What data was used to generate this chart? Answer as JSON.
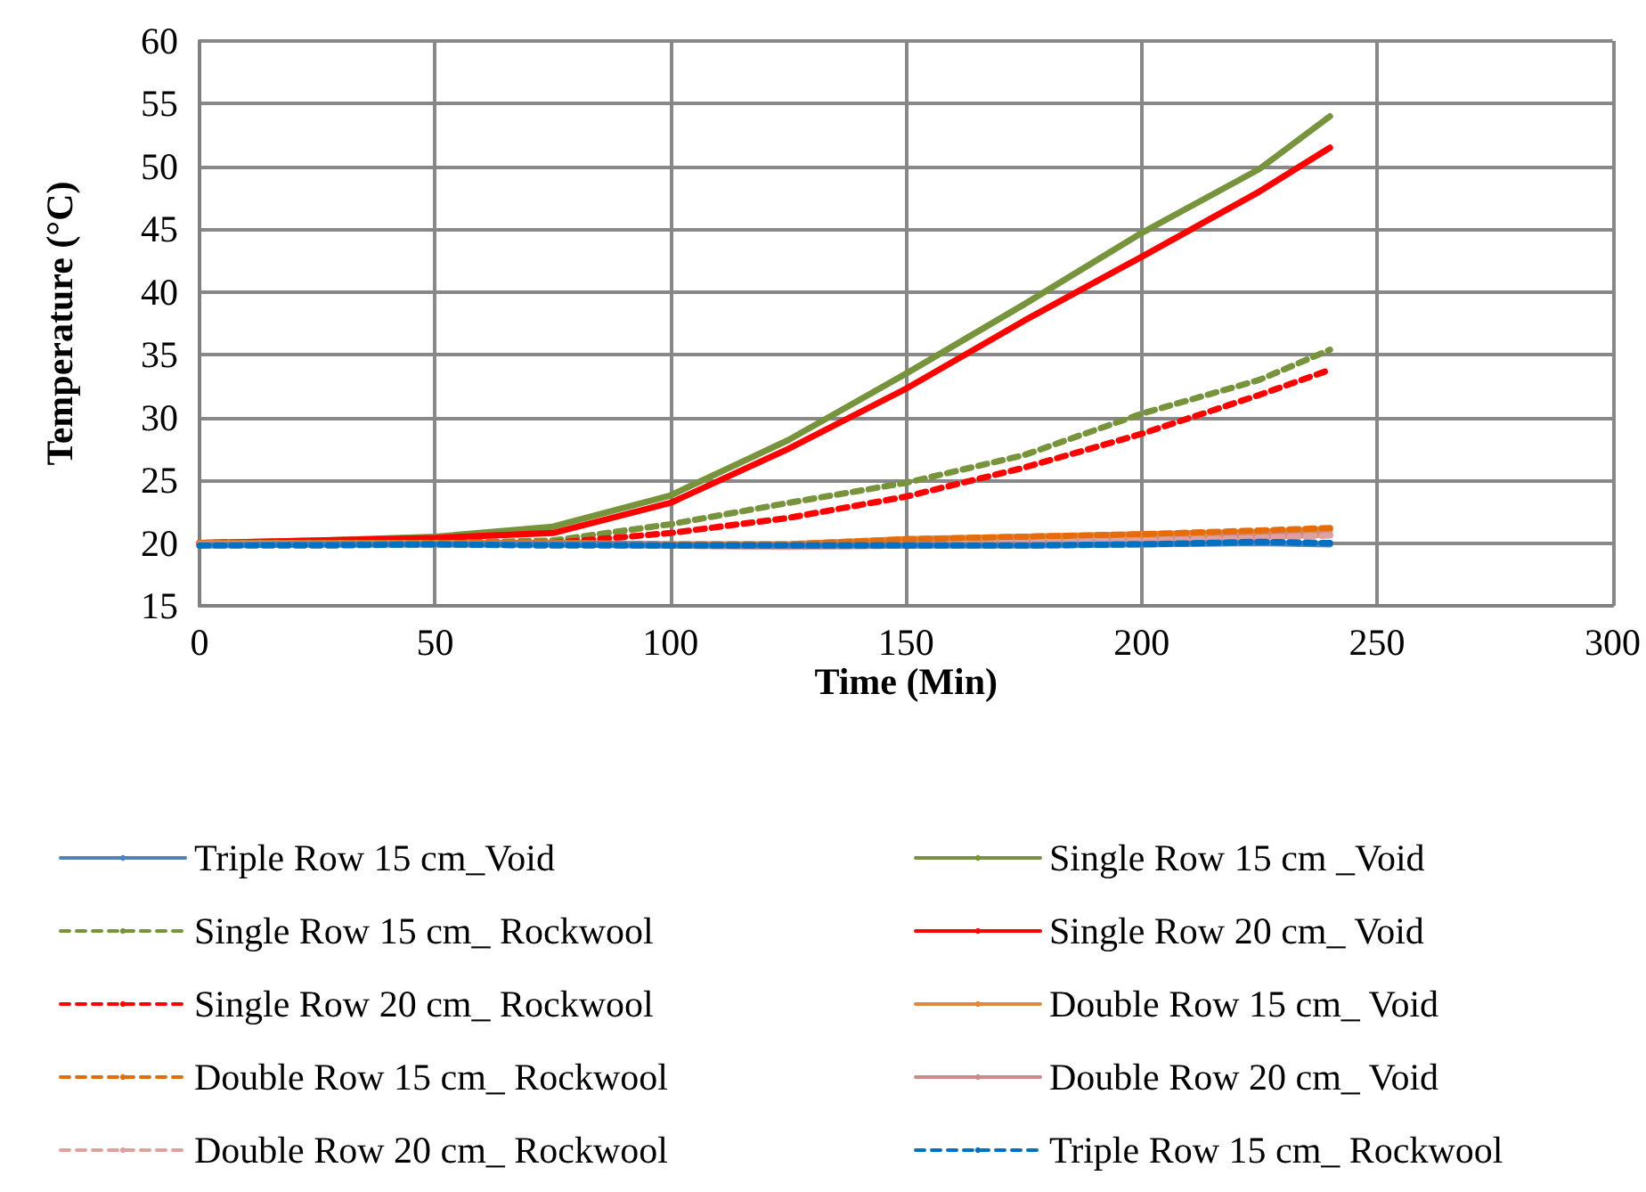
{
  "chart_data": {
    "type": "line",
    "xlabel": "Time (Min)",
    "ylabel": "Temperature (°C)",
    "x": [
      0,
      25,
      50,
      75,
      100,
      125,
      150,
      175,
      200,
      225,
      240
    ],
    "xlim": [
      0,
      300
    ],
    "xticks": [
      0,
      50,
      100,
      150,
      200,
      250,
      300
    ],
    "ylim": [
      15,
      60
    ],
    "yticks": [
      15,
      20,
      25,
      30,
      35,
      40,
      45,
      50,
      55,
      60
    ],
    "grid": true,
    "legend": "bottom",
    "marker": "none",
    "series": [
      {
        "name": "Triple Row 15 cm_Void",
        "color": "#4f81bd",
        "line_style": "solid",
        "values": [
          19.8,
          19.9,
          19.9,
          19.9,
          19.8,
          19.8,
          19.8,
          19.8,
          19.9,
          20.0,
          19.9
        ]
      },
      {
        "name": "Single Row 15 cm _Void",
        "color": "#77933c",
        "line_style": "solid",
        "values": [
          20.0,
          20.2,
          20.5,
          21.3,
          23.8,
          28.2,
          33.5,
          39.0,
          44.7,
          49.8,
          54.0
        ]
      },
      {
        "name": "Single Row 15 cm_ Rockwool",
        "color": "#77933c",
        "line_style": "dashed",
        "values": [
          20.0,
          20.0,
          20.0,
          20.2,
          21.5,
          23.2,
          24.8,
          27.0,
          30.3,
          33.0,
          35.4
        ]
      },
      {
        "name": "Single Row 20 cm_ Void",
        "color": "#ff0000",
        "line_style": "solid",
        "values": [
          20.0,
          20.2,
          20.4,
          20.8,
          23.2,
          27.5,
          32.3,
          37.7,
          42.8,
          48.0,
          51.5
        ]
      },
      {
        "name": "Single Row 20 cm_ Rockwool",
        "color": "#ff0000",
        "line_style": "dashed",
        "values": [
          20.0,
          20.0,
          20.0,
          20.0,
          20.8,
          22.0,
          23.7,
          26.0,
          28.7,
          31.8,
          33.8
        ]
      },
      {
        "name": "Double Row 15 cm_ Void",
        "color": "#e0883e",
        "line_style": "solid",
        "values": [
          20.0,
          20.0,
          20.0,
          20.0,
          19.9,
          19.9,
          20.3,
          20.5,
          20.7,
          20.9,
          21.1
        ]
      },
      {
        "name": "Double Row 15 cm_ Rockwool",
        "color": "#e46c0a",
        "line_style": "dashed",
        "values": [
          20.0,
          20.0,
          20.0,
          20.0,
          19.9,
          19.9,
          20.3,
          20.5,
          20.7,
          21.0,
          21.2
        ]
      },
      {
        "name": "Double Row 20 cm_ Void",
        "color": "#cd8a8a",
        "line_style": "solid",
        "values": [
          19.9,
          19.9,
          19.9,
          19.9,
          19.8,
          19.7,
          19.8,
          20.0,
          20.2,
          20.5,
          20.7
        ]
      },
      {
        "name": "Double Row 20 cm_ Rockwool",
        "color": "#e0a0a0",
        "line_style": "dashed",
        "values": [
          19.9,
          19.9,
          19.9,
          19.9,
          19.8,
          19.7,
          19.8,
          20.0,
          20.2,
          20.4,
          20.6
        ]
      },
      {
        "name": "Triple Row 15 cm_ Rockwool",
        "color": "#0070c0",
        "line_style": "dashed",
        "values": [
          19.8,
          19.8,
          19.9,
          19.8,
          19.8,
          19.8,
          19.8,
          19.8,
          19.9,
          20.1,
          20.0
        ]
      }
    ]
  }
}
